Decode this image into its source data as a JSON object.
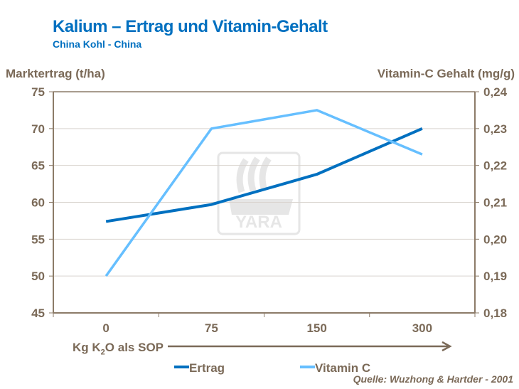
{
  "colors": {
    "title": "#0070c0",
    "text": "#7b6a58",
    "ertrag": "#0070c0",
    "vitamin_c": "#66bfff",
    "axis": "#8c7b68",
    "grid": "#d9d4cf"
  },
  "watermark": "YARA",
  "chart_data": {
    "type": "line",
    "title": "Kalium – Ertrag und Vitamin-Gehalt",
    "subtitle": "China Kohl - China",
    "ylabel": "Marktertrag (t/ha)",
    "y2label": "Vitamin-C Gehalt (mg/g)",
    "xlabel_pre": "Kg K",
    "xlabel_sub": "2",
    "xlabel_post": "O als SOP",
    "categories": [
      "0",
      "75",
      "150",
      "300"
    ],
    "ylim": [
      45,
      75
    ],
    "yticks": [
      "45",
      "50",
      "55",
      "60",
      "65",
      "70",
      "75"
    ],
    "y2lim": [
      0.18,
      0.24
    ],
    "y2ticks": [
      "0,18",
      "0,19",
      "0,20",
      "0,21",
      "0,22",
      "0,23",
      "0,24"
    ],
    "grid": true,
    "legend_position": "bottom",
    "series": [
      {
        "name": "Ertrag",
        "axis": "left",
        "values": [
          57.4,
          59.7,
          63.8,
          70.0
        ]
      },
      {
        "name": "Vitamin C",
        "axis": "right",
        "values": [
          0.19,
          0.23,
          0.235,
          0.223
        ]
      }
    ],
    "source": "Quelle: Wuzhong & Hartder - 2001"
  }
}
